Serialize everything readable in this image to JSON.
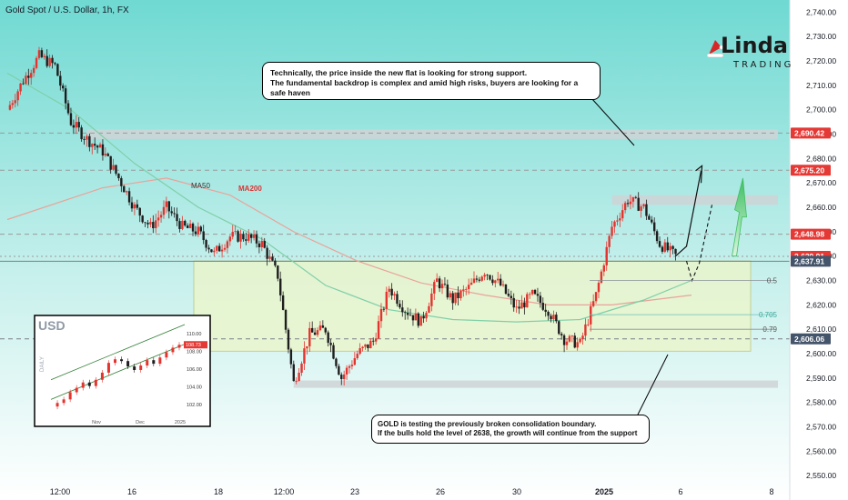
{
  "header": {
    "symbol_title": "Gold Spot / U.S. Dollar, 1h, FX"
  },
  "logo": {
    "main": "Linda",
    "sub": "TRADING"
  },
  "colors": {
    "bull": "#e3342f",
    "bear": "#1e1e1e",
    "background_top": "#6fd9d2",
    "background_bottom": "#ffffff",
    "zone": "#eef6c9",
    "zone_border": "#b9c47a",
    "resistance_band": "#cfd3d6",
    "ma50": "#7fcfa8",
    "ma200": "#e9a39b",
    "price_red": "#e53935",
    "price_dark": "#44546a",
    "target_arrow": "#3fbf62"
  },
  "chart_data": {
    "type": "line",
    "title": "Gold Spot / U.S. Dollar, 1h, FX",
    "ylim": [
      2540,
      2745
    ],
    "y_ticks": [
      "2,740.00",
      "2,730.00",
      "2,720.00",
      "2,710.00",
      "2,700.00",
      "2,690.00",
      "2,680.00",
      "2,670.00",
      "2,660.00",
      "2,650.00",
      "2,640.00",
      "2,630.00",
      "2,620.00",
      "2,610.00",
      "2,600.00",
      "2,590.00",
      "2,580.00",
      "2,570.00",
      "2,560.00",
      "2,550.00"
    ],
    "y_tick_values": [
      2740,
      2730,
      2720,
      2710,
      2700,
      2690,
      2680,
      2670,
      2660,
      2650,
      2640,
      2630,
      2620,
      2610,
      2600,
      2590,
      2580,
      2570,
      2560,
      2550
    ],
    "x_ticks": [
      "12:00",
      "16",
      "18",
      "12:00",
      "23",
      "26",
      "30",
      "2025",
      "6",
      "8"
    ],
    "price_path": [
      [
        0,
        2700
      ],
      [
        1,
        2712
      ],
      [
        2,
        2722
      ],
      [
        3,
        2718
      ],
      [
        4,
        2695
      ],
      [
        5,
        2688
      ],
      [
        6,
        2683
      ],
      [
        7,
        2672
      ],
      [
        8,
        2660
      ],
      [
        9,
        2652
      ],
      [
        10,
        2660
      ],
      [
        11,
        2652
      ],
      [
        12,
        2650
      ],
      [
        13,
        2641
      ],
      [
        14,
        2648
      ],
      [
        15,
        2648
      ],
      [
        16,
        2645
      ],
      [
        17,
        2632
      ],
      [
        18,
        2588
      ],
      [
        19,
        2608
      ],
      [
        20,
        2610
      ],
      [
        21,
        2590
      ],
      [
        22,
        2600
      ],
      [
        23,
        2605
      ],
      [
        24,
        2627
      ],
      [
        25,
        2618
      ],
      [
        26,
        2613
      ],
      [
        27,
        2630
      ],
      [
        28,
        2622
      ],
      [
        29,
        2627
      ],
      [
        30,
        2634
      ],
      [
        31,
        2628
      ],
      [
        32,
        2618
      ],
      [
        33,
        2624
      ],
      [
        34,
        2618
      ],
      [
        35,
        2606
      ],
      [
        36,
        2604
      ],
      [
        37,
        2624
      ],
      [
        38,
        2652
      ],
      [
        39,
        2663
      ],
      [
        40,
        2660
      ],
      [
        41,
        2645
      ],
      [
        42,
        2640
      ]
    ],
    "ma50_path": [
      [
        0,
        2715
      ],
      [
        4,
        2700
      ],
      [
        8,
        2678
      ],
      [
        12,
        2660
      ],
      [
        16,
        2647
      ],
      [
        20,
        2628
      ],
      [
        24,
        2618
      ],
      [
        28,
        2614
      ],
      [
        32,
        2613
      ],
      [
        36,
        2614
      ],
      [
        40,
        2622
      ],
      [
        43,
        2630
      ]
    ],
    "ma200_path": [
      [
        0,
        2655
      ],
      [
        6,
        2668
      ],
      [
        10,
        2672
      ],
      [
        14,
        2665
      ],
      [
        18,
        2650
      ],
      [
        22,
        2638
      ],
      [
        26,
        2629
      ],
      [
        30,
        2624
      ],
      [
        34,
        2620
      ],
      [
        38,
        2620
      ],
      [
        43,
        2624
      ]
    ],
    "levels": [
      {
        "label": "2,690.42",
        "value": 2690.42,
        "style": "dashed",
        "tag": "red"
      },
      {
        "label": "2,675.20",
        "value": 2675.2,
        "style": "dashed",
        "tag": "red"
      },
      {
        "label": "2,648.98",
        "value": 2648.98,
        "style": "dashed",
        "tag": "red"
      },
      {
        "label": "2,639.91",
        "value": 2639.91,
        "style": "dotted",
        "tag": "red"
      },
      {
        "label": "2,637.91",
        "value": 2637.91,
        "style": "solid",
        "tag": "dark"
      },
      {
        "label": "2,606.06",
        "value": 2606.06,
        "style": "dashed",
        "tag": "dark"
      }
    ],
    "fib_labels": [
      {
        "label": "0.5",
        "value": 2630
      },
      {
        "label": "0.705",
        "value": 2616
      },
      {
        "label": "0.79",
        "value": 2610
      }
    ],
    "ma_labels": [
      "MA50",
      "MA200"
    ],
    "consolidation_zone": {
      "top": 2638,
      "bottom": 2601
    },
    "resistance_bands": [
      {
        "top": 2692,
        "bottom": 2688,
        "from_index": 5,
        "to_index": 43
      },
      {
        "top": 2665,
        "bottom": 2661,
        "from_index": 38,
        "to_index": 43
      },
      {
        "top": 2589,
        "bottom": 2586,
        "from_index": 18,
        "to_index": 36
      }
    ]
  },
  "inset": {
    "label": "USD",
    "axis_side_label": "DAILY",
    "y_ticks": [
      "110.00",
      "108.00",
      "106.00",
      "104.00",
      "102.00"
    ],
    "y_tick_values": [
      110,
      108,
      106,
      104,
      102
    ],
    "current_tag": "108.73",
    "x_ticks": [
      "Nov",
      "Dec",
      "2025"
    ],
    "series": [
      101.8,
      102.2,
      102.6,
      103.4,
      103.9,
      104.5,
      104.1,
      104.8,
      105.6,
      106.7,
      107.1,
      106.9,
      106.3,
      105.9,
      106.4,
      107.0,
      106.6,
      107.3,
      107.9,
      108.4,
      108.73
    ]
  },
  "callouts": {
    "top": [
      "Technically, the price inside the new flat is looking for strong support.",
      "The fundamental backdrop is complex and amid high risks, buyers are looking for a safe haven"
    ],
    "bottom": [
      "GOLD is testing the previously broken consolidation boundary.",
      "If the bulls hold the level of 2638, the growth will continue from the support"
    ]
  }
}
